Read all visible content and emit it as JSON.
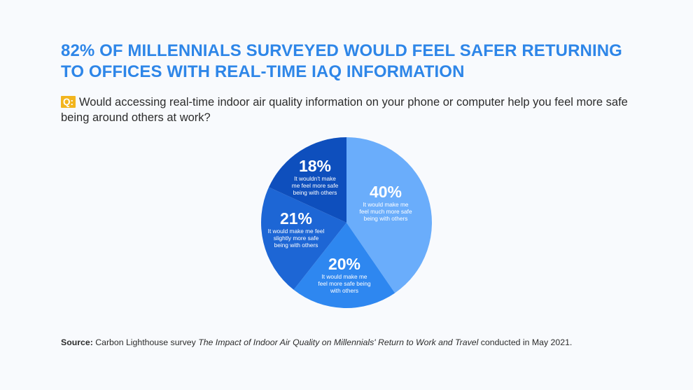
{
  "title": "82% OF MILLENNIALS SURVEYED WOULD FEEL SAFER RETURNING\nTO OFFICES WITH REAL-TIME IAQ INFORMATION",
  "question": {
    "badge": "Q:",
    "text": "Would accessing real-time indoor air quality information on your phone or computer help you feel more safe being around others at work?"
  },
  "chart_data": {
    "type": "pie",
    "start_angle_deg": 0,
    "direction": "clockwise",
    "slices": [
      {
        "label": "40%",
        "value": 40,
        "description": [
          "It would make me",
          "feel much more safe",
          "being with others"
        ],
        "color": "#6aadfb"
      },
      {
        "label": "20%",
        "value": 20,
        "description": [
          "It would make me",
          "feel more safe being",
          "with others"
        ],
        "color": "#2e87f0"
      },
      {
        "label": "21%",
        "value": 21,
        "description": [
          "It would make me feel",
          "slightly more safe",
          "being with others"
        ],
        "color": "#1d66d5"
      },
      {
        "label": "18%",
        "value": 18,
        "description": [
          "It wouldn't make",
          "me feel more safe",
          "being with others"
        ],
        "color": "#0e4fbd"
      }
    ]
  },
  "source": {
    "label": "Source:",
    "prefix": "Carbon Lighthouse survey",
    "title": "The Impact of Indoor Air Quality on Millennials' Return to Work and Travel",
    "suffix": "conducted in May 2021."
  }
}
